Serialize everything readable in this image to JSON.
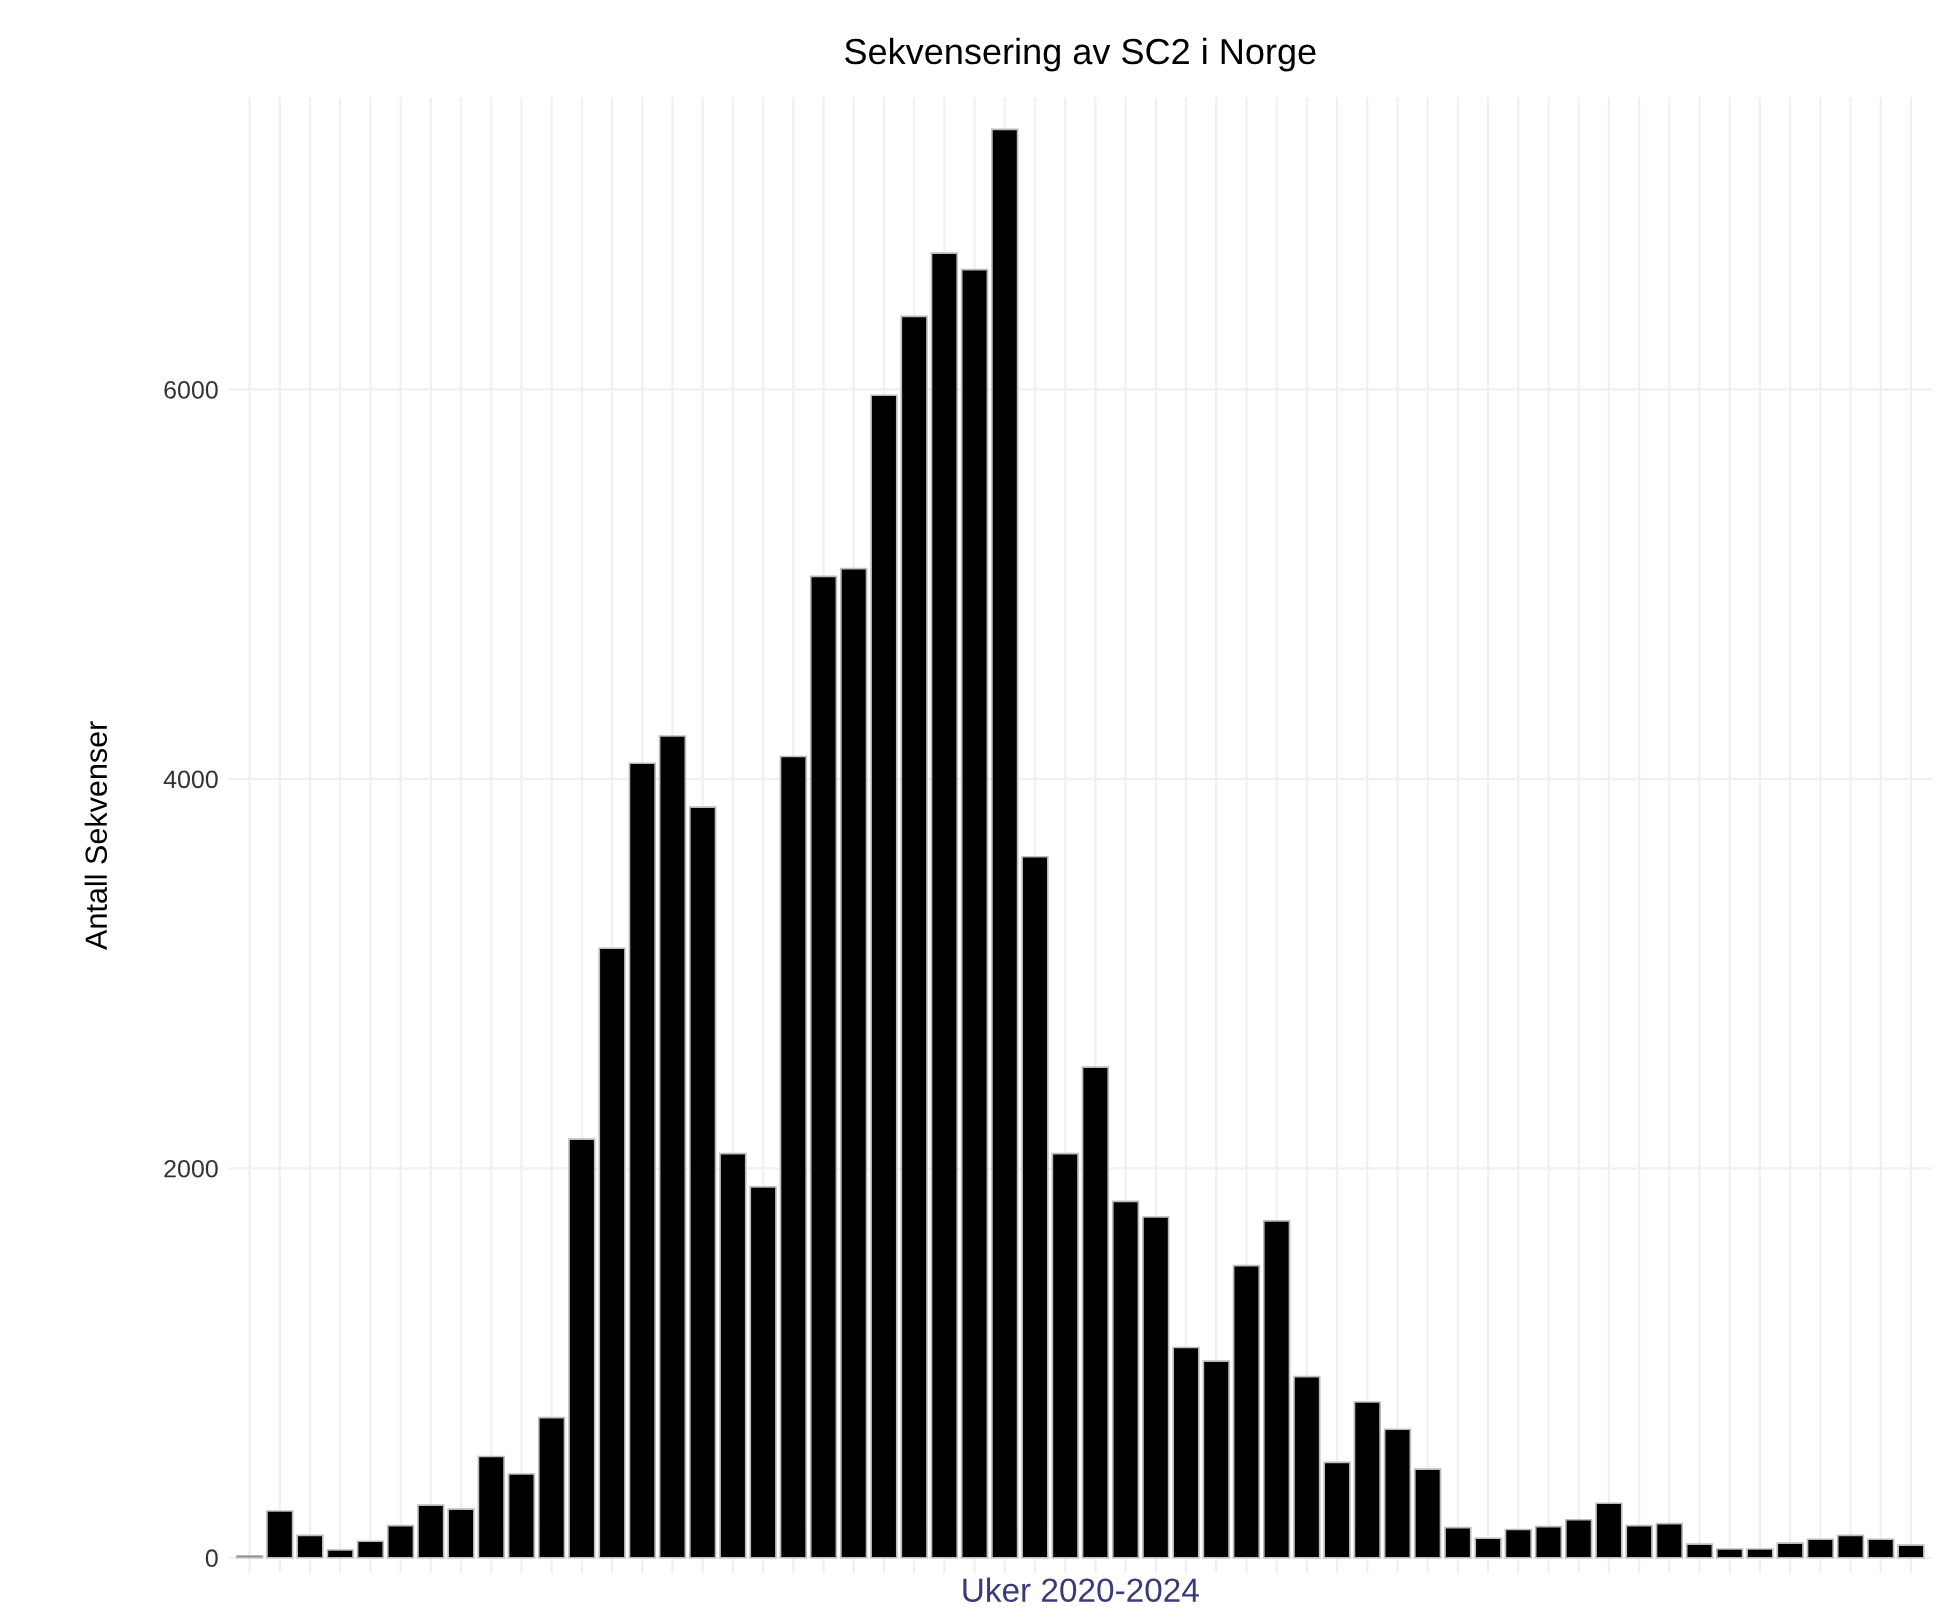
{
  "chart_data": {
    "type": "bar",
    "title": "Sekvensering av SC2 i Norge",
    "xlabel": "Uker 2020-2024",
    "ylabel": "Antall Sekvenser",
    "categories": [
      null,
      null,
      null,
      null,
      null,
      null,
      null,
      null,
      null,
      null,
      null,
      null,
      null,
      null,
      null,
      null,
      null,
      null,
      null,
      null,
      null,
      null,
      null,
      null,
      null,
      null,
      null,
      null,
      null,
      null,
      null,
      null,
      null,
      null,
      null,
      null,
      null,
      null,
      null,
      null,
      null,
      null,
      null,
      null,
      null,
      null,
      null,
      null,
      null,
      null,
      null,
      null,
      null,
      null,
      null,
      null
    ],
    "values": [
      10,
      240,
      115,
      40,
      85,
      165,
      270,
      250,
      520,
      430,
      720,
      2150,
      3130,
      4080,
      4220,
      3855,
      2075,
      1905,
      4115,
      5040,
      5080,
      5970,
      6375,
      6700,
      6615,
      7335,
      3600,
      2075,
      2520,
      1830,
      1750,
      1080,
      1010,
      1500,
      1730,
      930,
      490,
      800,
      660,
      455,
      155,
      100,
      145,
      160,
      195,
      280,
      165,
      175,
      70,
      45,
      45,
      75,
      95,
      115,
      95,
      65
    ],
    "color": "#000000",
    "ylim": [
      -80,
      7500
    ],
    "yticks": [
      0,
      2000,
      4000,
      6000
    ],
    "grid": true
  }
}
